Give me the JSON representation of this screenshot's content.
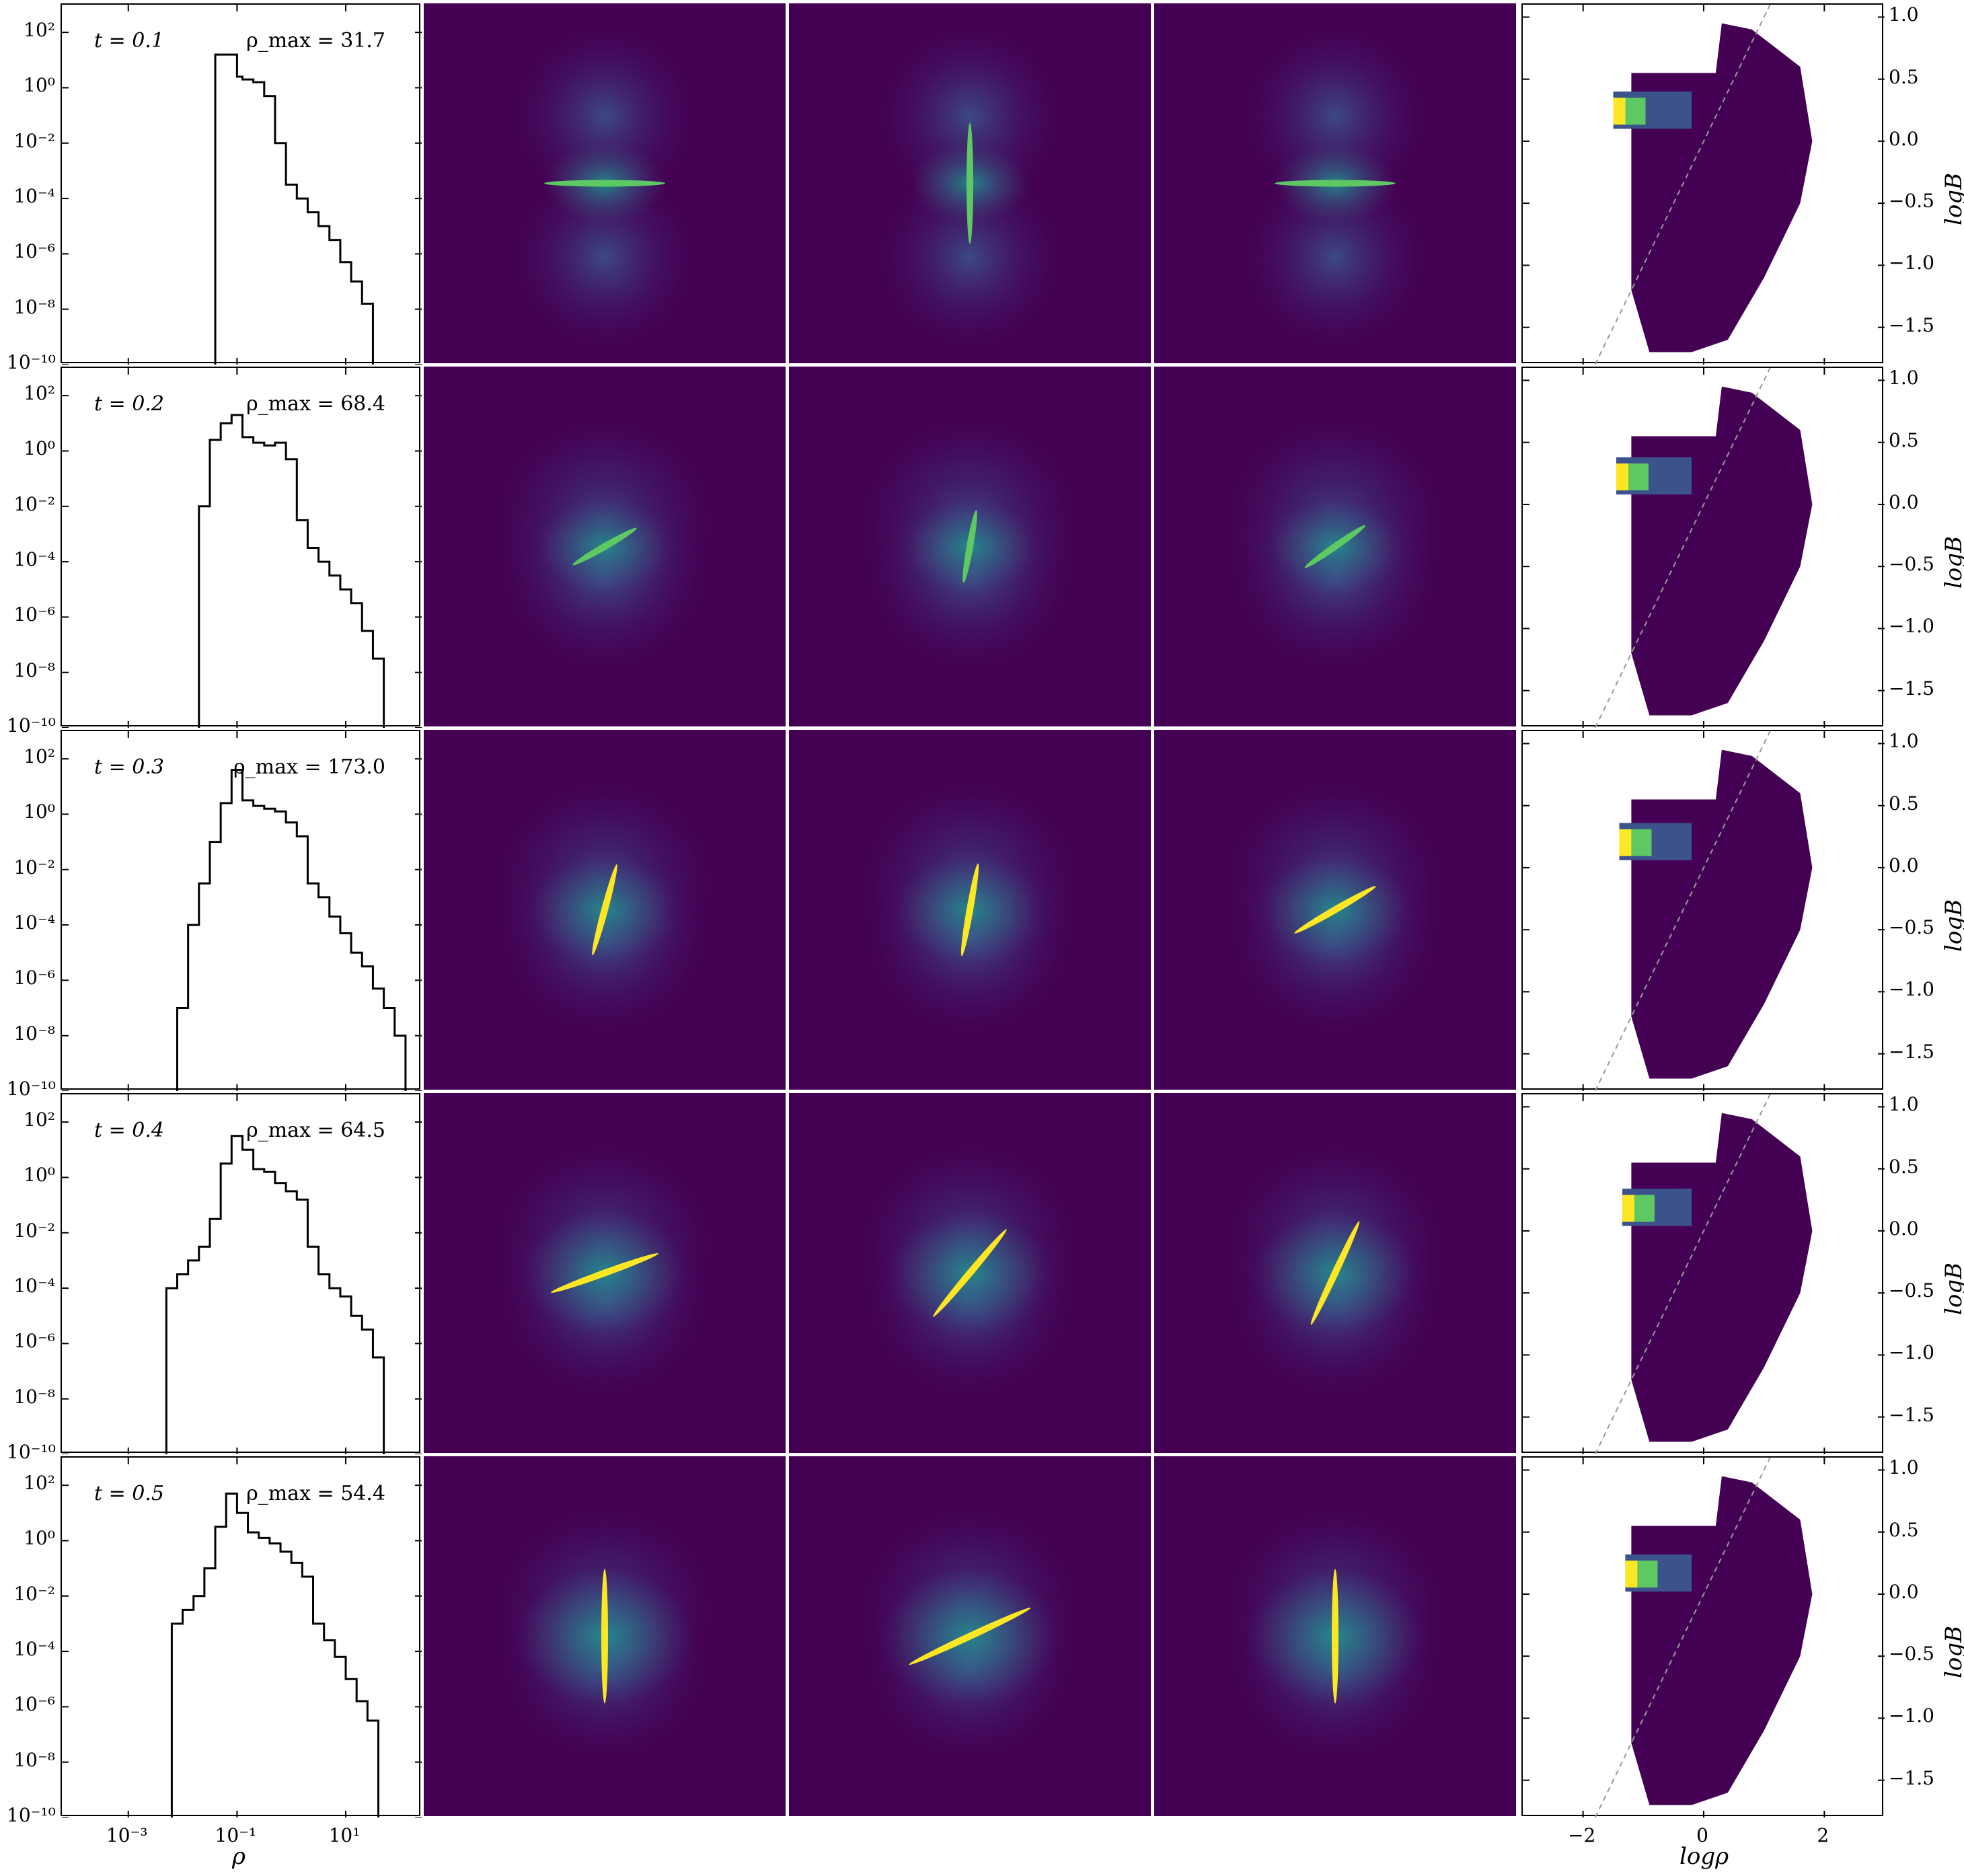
{
  "figure": {
    "rows": [
      {
        "t_label": "t = 0.1",
        "rho_max_label": "ρ_max = 31.7"
      },
      {
        "t_label": "t = 0.2",
        "rho_max_label": "ρ_max = 68.4"
      },
      {
        "t_label": "t = 0.3",
        "rho_max_label": "ρ_max = 173.0"
      },
      {
        "t_label": "t = 0.4",
        "rho_max_label": "ρ_max = 64.5"
      },
      {
        "t_label": "t = 0.5",
        "rho_max_label": "ρ_max = 54.4"
      }
    ],
    "hist_ytick_labels": [
      "10²",
      "10⁰",
      "10⁻²",
      "10⁻⁴",
      "10⁻⁶",
      "10⁻⁸",
      "10⁻¹⁰"
    ],
    "hist_xtick_labels": [
      "10⁻³",
      "10⁻¹",
      "10¹"
    ],
    "hist_xlabel": "ρ",
    "scatter_ytick_labels": [
      "1.0",
      "0.5",
      "0.0",
      "−0.5",
      "−1.0",
      "−1.5"
    ],
    "scatter_xtick_labels": [
      "−2",
      "0",
      "2"
    ],
    "scatter_ylabel": "logB",
    "scatter_xlabel": "logρ",
    "colormap": [
      "#440154",
      "#3b528b",
      "#21918c",
      "#5ec962",
      "#fde725"
    ]
  },
  "chart_data": [
    {
      "type": "histogram",
      "panel": "density PDF",
      "xscale": "log",
      "yscale": "log",
      "xlim": [
        6e-05,
        250
      ],
      "ylim": [
        1e-10,
        1000
      ],
      "xlabel": "ρ",
      "series": [
        {
          "t": 0.1,
          "rho_max": 31.7,
          "bin_edges_log10": [
            -1.4,
            -1.2,
            -1.0,
            -0.9,
            -0.7,
            -0.5,
            -0.3,
            -0.1,
            0.1,
            0.3,
            0.5,
            0.7,
            0.9,
            1.1,
            1.3,
            1.5
          ],
          "log10_values": [
            1.2,
            1.2,
            0.4,
            0.3,
            0.2,
            -0.3,
            -2,
            -3.5,
            -4,
            -4.5,
            -5,
            -5.5,
            -6.3,
            -7,
            -7.8
          ]
        },
        {
          "t": 0.2,
          "rho_max": 68.4,
          "bin_edges_log10": [
            -1.7,
            -1.5,
            -1.3,
            -1.1,
            -0.9,
            -0.7,
            -0.5,
            -0.3,
            -0.1,
            0.1,
            0.3,
            0.5,
            0.7,
            0.9,
            1.1,
            1.3,
            1.5,
            1.7
          ],
          "log10_values": [
            -2,
            0.4,
            1,
            1.3,
            0.5,
            0.3,
            0.2,
            0.3,
            -0.3,
            -2.5,
            -3.5,
            -4,
            -4.5,
            -5,
            -5.5,
            -6.5,
            -7.5
          ]
        },
        {
          "t": 0.3,
          "rho_max": 173.0,
          "bin_edges_log10": [
            -2.1,
            -1.9,
            -1.7,
            -1.5,
            -1.3,
            -1.1,
            -0.9,
            -0.7,
            -0.5,
            -0.3,
            -0.1,
            0.1,
            0.3,
            0.5,
            0.7,
            0.9,
            1.1,
            1.3,
            1.5,
            1.7,
            1.9,
            2.1
          ],
          "log10_values": [
            -7,
            -4,
            -2.5,
            -1,
            0.4,
            1.6,
            0.5,
            0.3,
            0.2,
            0.1,
            -0.3,
            -0.8,
            -2.5,
            -3,
            -3.7,
            -4.3,
            -5,
            -5.5,
            -6.3,
            -7,
            -8
          ]
        },
        {
          "t": 0.4,
          "rho_max": 64.5,
          "bin_edges_log10": [
            -2.3,
            -2.1,
            -1.9,
            -1.7,
            -1.5,
            -1.3,
            -1.1,
            -0.9,
            -0.7,
            -0.5,
            -0.3,
            -0.1,
            0.1,
            0.3,
            0.5,
            0.7,
            0.9,
            1.1,
            1.3,
            1.5,
            1.7
          ],
          "log10_values": [
            -4,
            -3.5,
            -3,
            -2.5,
            -1.5,
            0.5,
            1.5,
            1,
            0.3,
            0.2,
            -0.2,
            -0.5,
            -0.8,
            -2.5,
            -3.5,
            -4,
            -4.3,
            -5,
            -5.5,
            -6.5
          ]
        },
        {
          "t": 0.5,
          "rho_max": 54.4,
          "bin_edges_log10": [
            -2.2,
            -2.0,
            -1.8,
            -1.6,
            -1.4,
            -1.2,
            -1.0,
            -0.8,
            -0.6,
            -0.4,
            -0.2,
            0.0,
            0.2,
            0.4,
            0.6,
            0.8,
            1.0,
            1.2,
            1.4,
            1.6
          ],
          "log10_values": [
            -3,
            -2.5,
            -2,
            -1,
            0.5,
            1.7,
            1,
            0.3,
            0.1,
            -0.1,
            -0.4,
            -0.8,
            -1.3,
            -3,
            -3.6,
            -4.2,
            -5,
            -5.8,
            -6.5
          ]
        }
      ]
    },
    {
      "type": "heatmap",
      "panel": "2D histogram logB vs logρ",
      "xlim": [
        -3,
        3
      ],
      "ylim": [
        -1.8,
        1.1
      ],
      "xlabel": "logρ",
      "ylabel": "logB",
      "reference_line": {
        "style": "dashed",
        "slope": 1.0,
        "intercept": 0.0
      }
    }
  ]
}
